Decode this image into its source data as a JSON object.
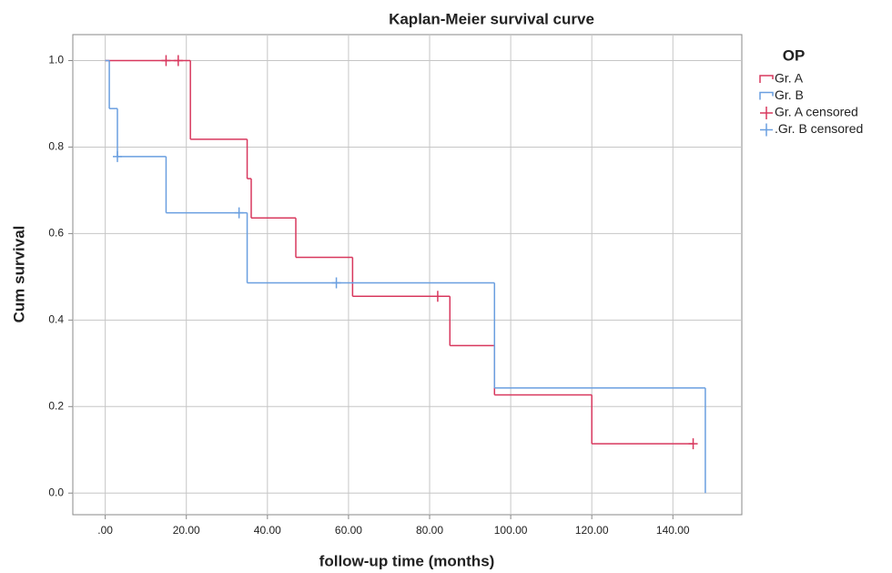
{
  "chart_data": {
    "type": "kaplan-meier",
    "title": "Kaplan-Meier survival curve",
    "x_label": "follow-up time (months)",
    "y_label": "Cum survival",
    "legend_title": "OP",
    "legend_position": "right",
    "grid": true,
    "xlim": [
      -8,
      157
    ],
    "ylim": [
      -0.05,
      1.06
    ],
    "xticks": [
      {
        "value": 0,
        "label": ".00"
      },
      {
        "value": 20,
        "label": "20.00"
      },
      {
        "value": 40,
        "label": "40.00"
      },
      {
        "value": 60,
        "label": "60.00"
      },
      {
        "value": 80,
        "label": "80.00"
      },
      {
        "value": 100,
        "label": "100.00"
      },
      {
        "value": 120,
        "label": "120.00"
      },
      {
        "value": 140,
        "label": "140.00"
      }
    ],
    "yticks": [
      {
        "value": 0,
        "label": "0.0"
      },
      0.2,
      0.4,
      0.6,
      0.8,
      {
        "value": 1,
        "label": "1.0"
      }
    ],
    "series": [
      {
        "name": "Gr. A",
        "color": "#d8385e",
        "x": [
          0,
          21,
          35,
          36,
          47,
          61,
          85,
          96,
          120
        ],
        "values": [
          1.0,
          0.818,
          0.727,
          0.636,
          0.545,
          0.455,
          0.341,
          0.227,
          0.114
        ]
      },
      {
        "name": "Gr. B",
        "color": "#6a9fe0",
        "x": [
          0,
          1,
          3,
          15,
          35,
          96,
          148
        ],
        "values": [
          1.0,
          0.889,
          0.778,
          0.648,
          0.486,
          0.243,
          0.0
        ]
      }
    ],
    "censored": [
      {
        "name": "Gr. A censored",
        "color": "#d8385e",
        "x": [
          15,
          18,
          82,
          145
        ],
        "values": [
          1.0,
          1.0,
          0.455,
          0.114
        ]
      },
      {
        "name": ".Gr. B censored",
        "color": "#6a9fe0",
        "x": [
          3,
          33,
          57
        ],
        "values": [
          0.778,
          0.648,
          0.486
        ]
      }
    ]
  }
}
